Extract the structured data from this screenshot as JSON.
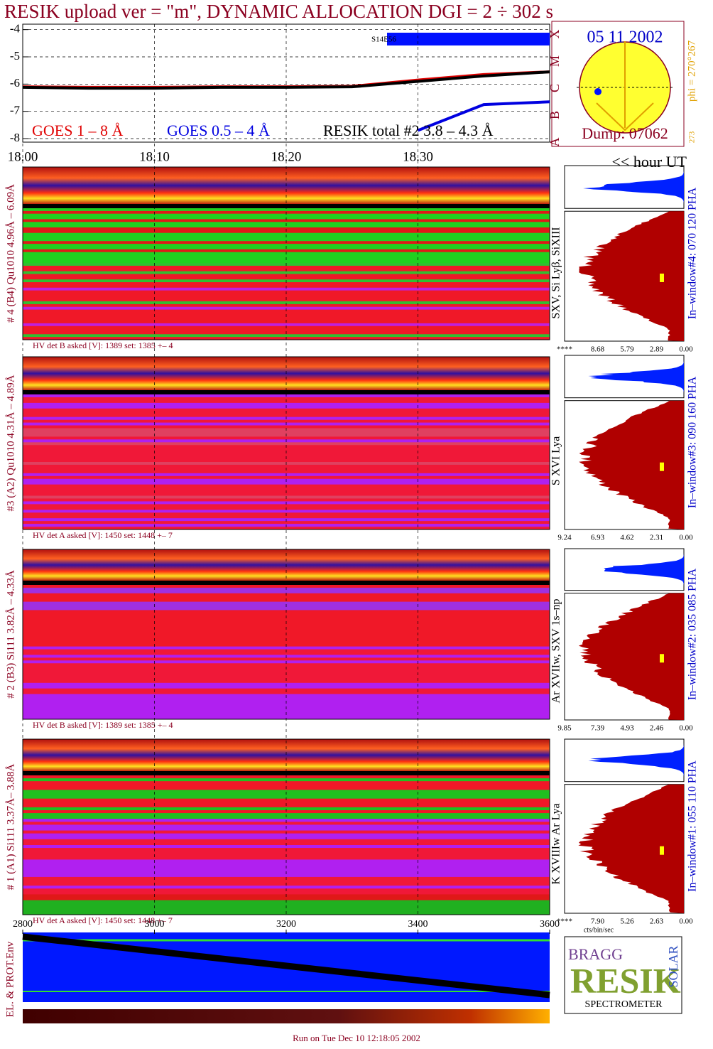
{
  "title": "RESIK upload ver = \"m\", DYNAMIC ALLOCATION  DGI =   2 ÷ 302 s",
  "chart_data": [
    {
      "type": "line",
      "x": [
        18.0,
        18.05,
        18.1,
        18.15,
        18.2,
        18.25,
        18.3,
        18.35,
        18.4
      ],
      "series": [
        {
          "name": "GOES 1 – 8 Å",
          "color": "#e00000",
          "values": [
            -6.1,
            -6.12,
            -6.12,
            -6.1,
            -6.1,
            -6.08,
            -5.85,
            -5.65,
            -5.55
          ]
        },
        {
          "name": "GOES 0.5 – 4 Å",
          "color": "#0000e0",
          "values": [
            null,
            null,
            null,
            null,
            null,
            null,
            -7.7,
            -6.75,
            -6.65
          ]
        },
        {
          "name": "RESIK total #2  3.8 – 4.3 Å",
          "color": "#000000",
          "values": [
            -6.12,
            -6.15,
            -6.15,
            -6.12,
            -6.12,
            -6.1,
            -5.9,
            -5.7,
            -5.55
          ]
        }
      ],
      "xlim": [
        18.0,
        18.4
      ],
      "xticks": [
        {
          "value": 18.0,
          "label": "18.00"
        },
        {
          "value": 18.1,
          "label": "18.10"
        },
        {
          "value": 18.2,
          "label": "18.20"
        },
        {
          "value": 18.3,
          "label": "18.30"
        }
      ],
      "ylim": [
        -8,
        -3.8
      ],
      "yticks": [
        -4,
        -5,
        -6,
        -7,
        -8
      ],
      "grid": true,
      "flare_classes": [
        "A",
        "B",
        "C",
        "M",
        "X"
      ],
      "annotation": "S14E56",
      "x_unit": "<< hour UT"
    },
    {
      "type": "timeline",
      "ylabel": "EL. & PROT.Env",
      "xlim": [
        2800,
        3600
      ],
      "xticks": [
        2800,
        3000,
        3200,
        3400,
        3600
      ]
    }
  ],
  "sun": {
    "date": "05 11 2002",
    "phi": "phi = 270°267",
    "bottom": "273",
    "dump": "Dump: 07062"
  },
  "spectra": [
    {
      "detector": "# 4 (B4) Qu1010 4.96Å – 6.09Å",
      "hv": "HV det B asked [V]:  1389 set:  1385 +–   4",
      "lines": "SXV, Si Lyβ, SiXIII",
      "window": "In–window#4:  070 120 PHA",
      "ticks": [
        "****",
        "8.68",
        "5.79",
        "2.89",
        "0.00"
      ]
    },
    {
      "detector": "#3 (A2) Qu1010  4.31Å – 4.89Å",
      "hv": "HV det A asked [V]:  1450 set:  1448 +–    7",
      "lines": "S XVI Lya",
      "window": "In–window#3:  090 160 PHA",
      "ticks": [
        "9.24",
        "6.93",
        "4.62",
        "2.31",
        "0.00"
      ]
    },
    {
      "detector": "# 2 (B3) Si111  3.82Å – 4.33Å",
      "hv": "HV det B asked [V]:  1389 set:  1385 +–   4",
      "lines": "Ar XVIIw,  SXV 1s–np",
      "window": "In–window#2:  035 085 PHA",
      "ticks": [
        "9.85",
        "7.39",
        "4.93",
        "2.46",
        "0.00"
      ]
    },
    {
      "detector": "# 1 (A1) Si111  3.37Å– 3.88Å",
      "hv": "HV det A asked [V]:  1450 set:  1448 +–    7",
      "lines": "K XVIIIw  Ar Lya",
      "window": "In–window#1:  055 110 PHA",
      "ticks": [
        "****",
        "7.90",
        "5.26",
        "2.63",
        "0.00"
      ]
    }
  ],
  "hist_unit": "cts/bin/sec",
  "logo": {
    "bragg": "BRAGG",
    "resik": "RESIK",
    "solar": "SOLAR",
    "caption": "SPECTROMETER"
  },
  "footer": "Run on Tue Dec 10 12:18:05 2002"
}
